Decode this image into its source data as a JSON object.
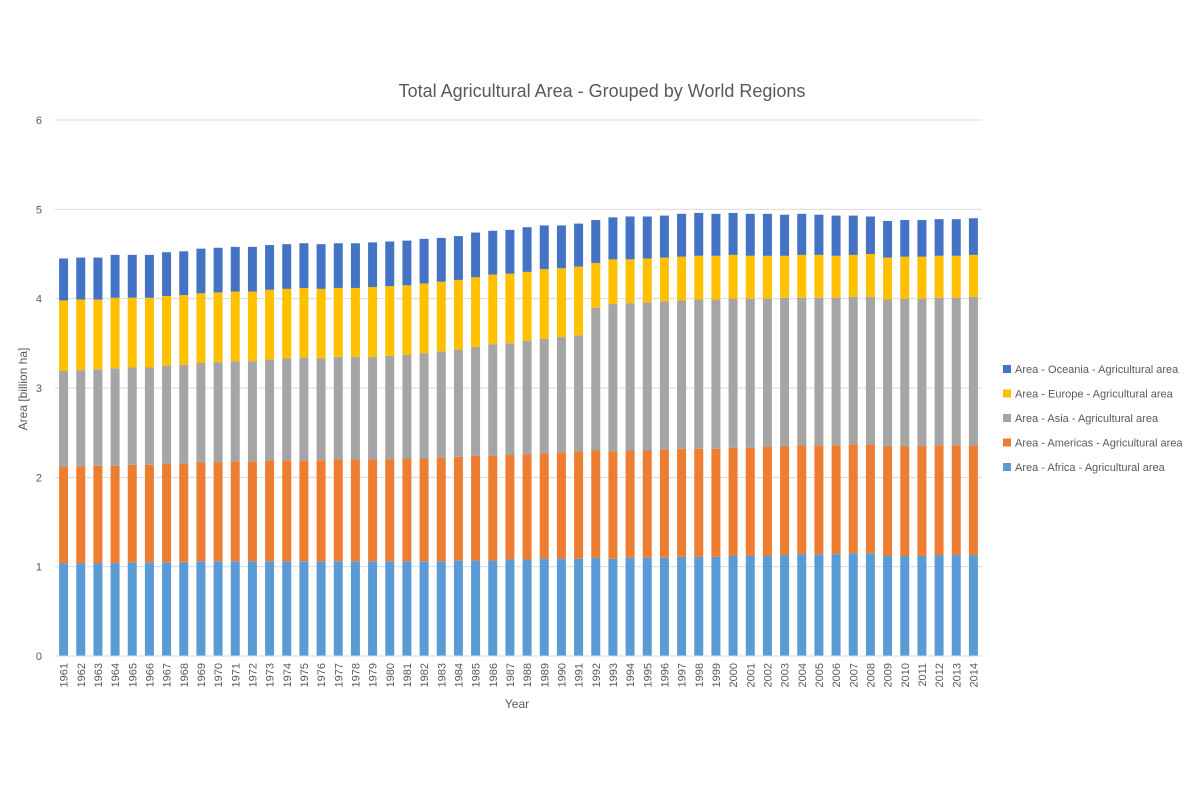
{
  "chart_data": {
    "type": "bar",
    "stacked": true,
    "title": "Total Agricultural Area - Grouped by World Regions",
    "xlabel": "Year",
    "ylabel": "Area  [billion ha]",
    "ylim": [
      0,
      6
    ],
    "yticks": [
      "0",
      "1",
      "2",
      "3",
      "4",
      "5",
      "6"
    ],
    "grid": true,
    "legend_position": "right",
    "categories": [
      "1961",
      "1962",
      "1963",
      "1964",
      "1965",
      "1966",
      "1967",
      "1968",
      "1969",
      "1970",
      "1971",
      "1972",
      "1973",
      "1974",
      "1975",
      "1976",
      "1977",
      "1978",
      "1979",
      "1980",
      "1981",
      "1982",
      "1983",
      "1984",
      "1985",
      "1986",
      "1987",
      "1988",
      "1989",
      "1990",
      "1991",
      "1992",
      "1993",
      "1994",
      "1995",
      "1996",
      "1997",
      "1998",
      "1999",
      "2000",
      "2001",
      "2002",
      "2003",
      "2004",
      "2005",
      "2006",
      "2007",
      "2008",
      "2009",
      "2010",
      "2011",
      "2012",
      "2013",
      "2014"
    ],
    "series": [
      {
        "name": "Area - Africa - Agricultural area",
        "color": "#5B9BD5",
        "values": [
          1.04,
          1.04,
          1.04,
          1.04,
          1.05,
          1.05,
          1.05,
          1.05,
          1.06,
          1.06,
          1.06,
          1.06,
          1.06,
          1.06,
          1.06,
          1.06,
          1.06,
          1.06,
          1.06,
          1.06,
          1.06,
          1.06,
          1.06,
          1.07,
          1.07,
          1.07,
          1.08,
          1.08,
          1.09,
          1.09,
          1.09,
          1.1,
          1.09,
          1.1,
          1.1,
          1.1,
          1.11,
          1.11,
          1.11,
          1.12,
          1.12,
          1.12,
          1.13,
          1.14,
          1.14,
          1.14,
          1.15,
          1.15,
          1.12,
          1.12,
          1.12,
          1.13,
          1.13,
          1.13
        ]
      },
      {
        "name": "Area - Americas - Agricultural area",
        "color": "#ED7D31",
        "values": [
          1.08,
          1.08,
          1.09,
          1.09,
          1.09,
          1.09,
          1.1,
          1.1,
          1.11,
          1.11,
          1.12,
          1.12,
          1.13,
          1.13,
          1.13,
          1.13,
          1.14,
          1.14,
          1.14,
          1.14,
          1.15,
          1.15,
          1.16,
          1.16,
          1.17,
          1.17,
          1.17,
          1.18,
          1.18,
          1.19,
          1.2,
          1.2,
          1.2,
          1.2,
          1.2,
          1.21,
          1.21,
          1.21,
          1.21,
          1.21,
          1.21,
          1.22,
          1.22,
          1.22,
          1.22,
          1.22,
          1.22,
          1.22,
          1.23,
          1.23,
          1.23,
          1.23,
          1.23,
          1.23
        ]
      },
      {
        "name": "Area - Asia - Agricultural area",
        "color": "#A5A5A5",
        "values": [
          1.07,
          1.08,
          1.08,
          1.09,
          1.09,
          1.09,
          1.1,
          1.11,
          1.11,
          1.12,
          1.12,
          1.12,
          1.13,
          1.14,
          1.15,
          1.14,
          1.15,
          1.15,
          1.15,
          1.16,
          1.16,
          1.18,
          1.19,
          1.2,
          1.22,
          1.25,
          1.25,
          1.27,
          1.28,
          1.29,
          1.3,
          1.6,
          1.65,
          1.65,
          1.66,
          1.66,
          1.66,
          1.67,
          1.67,
          1.67,
          1.67,
          1.66,
          1.66,
          1.65,
          1.65,
          1.65,
          1.65,
          1.65,
          1.64,
          1.65,
          1.65,
          1.65,
          1.65,
          1.66
        ]
      },
      {
        "name": "Area - Europe - Agricultural area",
        "color": "#FFC000",
        "values": [
          0.79,
          0.79,
          0.78,
          0.79,
          0.78,
          0.78,
          0.78,
          0.78,
          0.78,
          0.78,
          0.78,
          0.78,
          0.78,
          0.78,
          0.78,
          0.78,
          0.77,
          0.77,
          0.78,
          0.78,
          0.78,
          0.78,
          0.78,
          0.78,
          0.78,
          0.78,
          0.78,
          0.77,
          0.78,
          0.77,
          0.77,
          0.5,
          0.5,
          0.49,
          0.49,
          0.49,
          0.49,
          0.49,
          0.49,
          0.49,
          0.48,
          0.48,
          0.47,
          0.48,
          0.48,
          0.47,
          0.47,
          0.48,
          0.47,
          0.47,
          0.47,
          0.47,
          0.47,
          0.47
        ]
      },
      {
        "name": "Area - Oceania - Agricultural area",
        "color": "#4472C4",
        "values": [
          0.47,
          0.47,
          0.47,
          0.48,
          0.48,
          0.48,
          0.49,
          0.49,
          0.5,
          0.5,
          0.5,
          0.5,
          0.5,
          0.5,
          0.5,
          0.5,
          0.5,
          0.5,
          0.5,
          0.5,
          0.5,
          0.5,
          0.49,
          0.49,
          0.5,
          0.49,
          0.49,
          0.5,
          0.49,
          0.48,
          0.48,
          0.48,
          0.47,
          0.48,
          0.47,
          0.47,
          0.48,
          0.48,
          0.47,
          0.47,
          0.47,
          0.47,
          0.46,
          0.46,
          0.45,
          0.45,
          0.44,
          0.42,
          0.41,
          0.41,
          0.41,
          0.41,
          0.41,
          0.41
        ]
      }
    ]
  }
}
